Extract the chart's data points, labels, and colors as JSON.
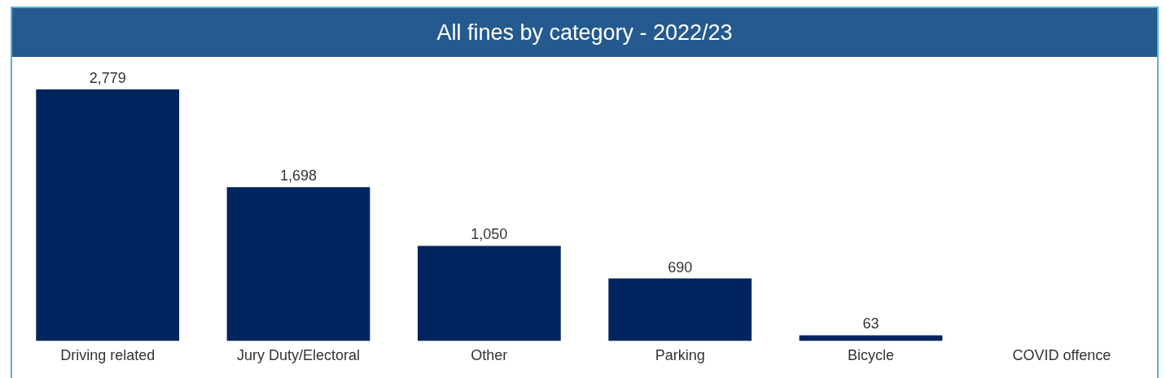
{
  "chart_data": {
    "type": "bar",
    "title": "All fines by category - 2022/23",
    "categories": [
      "Driving related",
      "Jury Duty/Electoral",
      "Other",
      "Parking",
      "Bicycle",
      "COVID offence"
    ],
    "values": [
      2779,
      1698,
      1050,
      690,
      63,
      null
    ],
    "value_labels": [
      "2,779",
      "1,698",
      "1,050",
      "690",
      "63",
      null
    ],
    "color": "#00245d",
    "grid": false,
    "legend": false
  }
}
